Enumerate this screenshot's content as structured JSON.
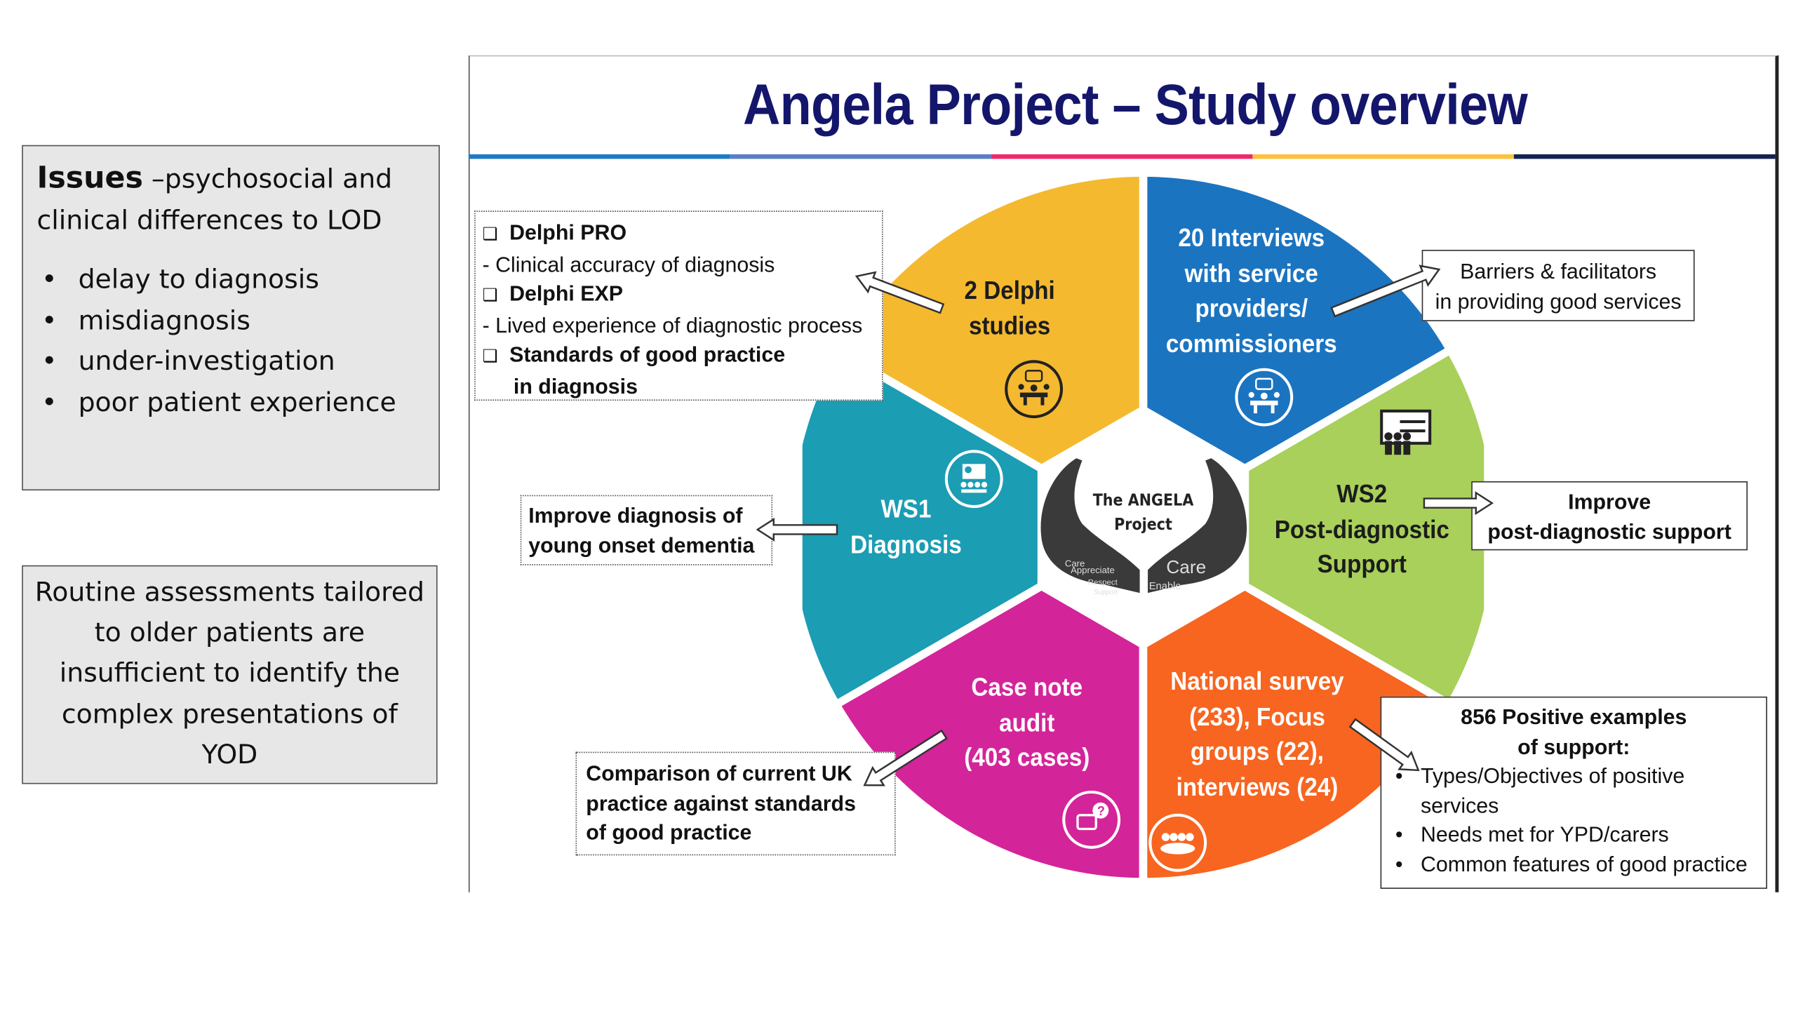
{
  "left_panel": {
    "issues_box": {
      "heading": "Issues",
      "heading_rest": " –psychosocial and clinical differences to LOD",
      "bullets": [
        "delay to diagnosis",
        "misdiagnosis",
        "under-investigation",
        "poor patient experience"
      ]
    },
    "routine_box": {
      "text": "Routine assessments tailored to older patients are insufficient to identify the complex presentations of YOD"
    }
  },
  "slide": {
    "title": "Angela Project – Study overview",
    "stripe_colors": [
      "#1f7ac4",
      "#5b7fc4",
      "#ee2a6c",
      "#fcc23f",
      "#14234f"
    ],
    "center": {
      "line1": "The ANGELA",
      "line2": "Project",
      "hand_words": [
        "Care",
        "Appreciate",
        "Respect",
        "Support",
        "Care",
        "Enable"
      ]
    },
    "segments": {
      "delphi": {
        "lines": [
          "2 Delphi",
          "studies"
        ],
        "color": "#f4b92f",
        "icon": "meeting-icon"
      },
      "interviews": {
        "lines": [
          "20 Interviews",
          "with service",
          "providers/",
          "commissioners"
        ],
        "color": "#1b74c0",
        "icon": "meeting-icon"
      },
      "ws2": {
        "lines": [
          "WS2",
          "Post-diagnostic",
          "Support"
        ],
        "color": "#a8d05a",
        "icon": "presentation-board-icon"
      },
      "survey": {
        "lines": [
          "National survey",
          "(233), Focus",
          "groups (22),",
          "interviews (24)"
        ],
        "color": "#f76520",
        "icon": "group-icon"
      },
      "audit": {
        "lines": [
          "Case note",
          "audit",
          "(403 cases)"
        ],
        "color": "#d4249a",
        "icon": "question-chat-icon"
      },
      "ws1": {
        "lines": [
          "WS1",
          "Diagnosis"
        ],
        "color": "#1b9db4",
        "icon": "presenter-icon"
      }
    },
    "callouts": {
      "delphi": {
        "item1": "Delphi PRO",
        "item1_desc": "- Clinical accuracy of diagnosis",
        "item2": "Delphi EXP",
        "item2_desc": "- Lived experience of diagnostic process",
        "item3": "Standards of good practice",
        "item3_cont": "in diagnosis"
      },
      "barriers": {
        "line1": "Barriers & facilitators",
        "line2": "in providing good services"
      },
      "improve_diagnosis": {
        "line1": "Improve diagnosis of",
        "line2": "young onset dementia"
      },
      "improve_post": {
        "line1": "Improve",
        "line2": "post-diagnostic support"
      },
      "comparison": {
        "line1": "Comparison of current UK",
        "line2": "practice against standards",
        "line3": "of good practice"
      },
      "positive": {
        "heading1": "856 Positive examples",
        "heading2": "of support:",
        "bullets": [
          "Types/Objectives of positive services",
          "Needs met for YPD/carers",
          "Common features of good practice"
        ]
      }
    }
  }
}
